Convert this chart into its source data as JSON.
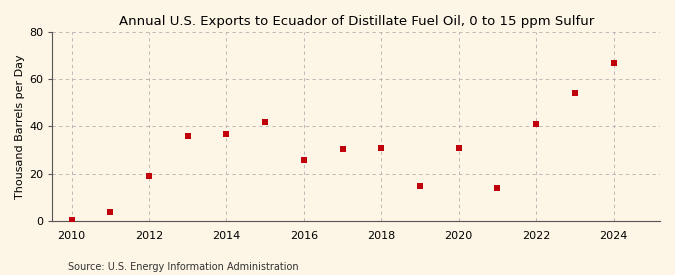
{
  "title": "Annual U.S. Exports to Ecuador of Distillate Fuel Oil, 0 to 15 ppm Sulfur",
  "ylabel": "Thousand Barrels per Day",
  "source": "Source: U.S. Energy Information Administration",
  "years": [
    2010,
    2011,
    2012,
    2013,
    2014,
    2015,
    2016,
    2017,
    2018,
    2019,
    2020,
    2021,
    2022,
    2023,
    2024
  ],
  "values": [
    0.4,
    4.0,
    19.0,
    36.0,
    37.0,
    42.0,
    26.0,
    30.5,
    31.0,
    15.0,
    31.0,
    14.0,
    41.0,
    54.0,
    67.0
  ],
  "marker_color": "#c0000a",
  "marker_size": 18,
  "bg_color": "#fdf5e6",
  "grid_color": "#b0b0b0",
  "xlim": [
    2009.5,
    2025.2
  ],
  "ylim": [
    0,
    80
  ],
  "yticks": [
    0,
    20,
    40,
    60,
    80
  ],
  "xticks": [
    2010,
    2012,
    2014,
    2016,
    2018,
    2020,
    2022,
    2024
  ],
  "title_fontsize": 9.5,
  "label_fontsize": 8.0,
  "tick_fontsize": 8.0,
  "source_fontsize": 7.0
}
